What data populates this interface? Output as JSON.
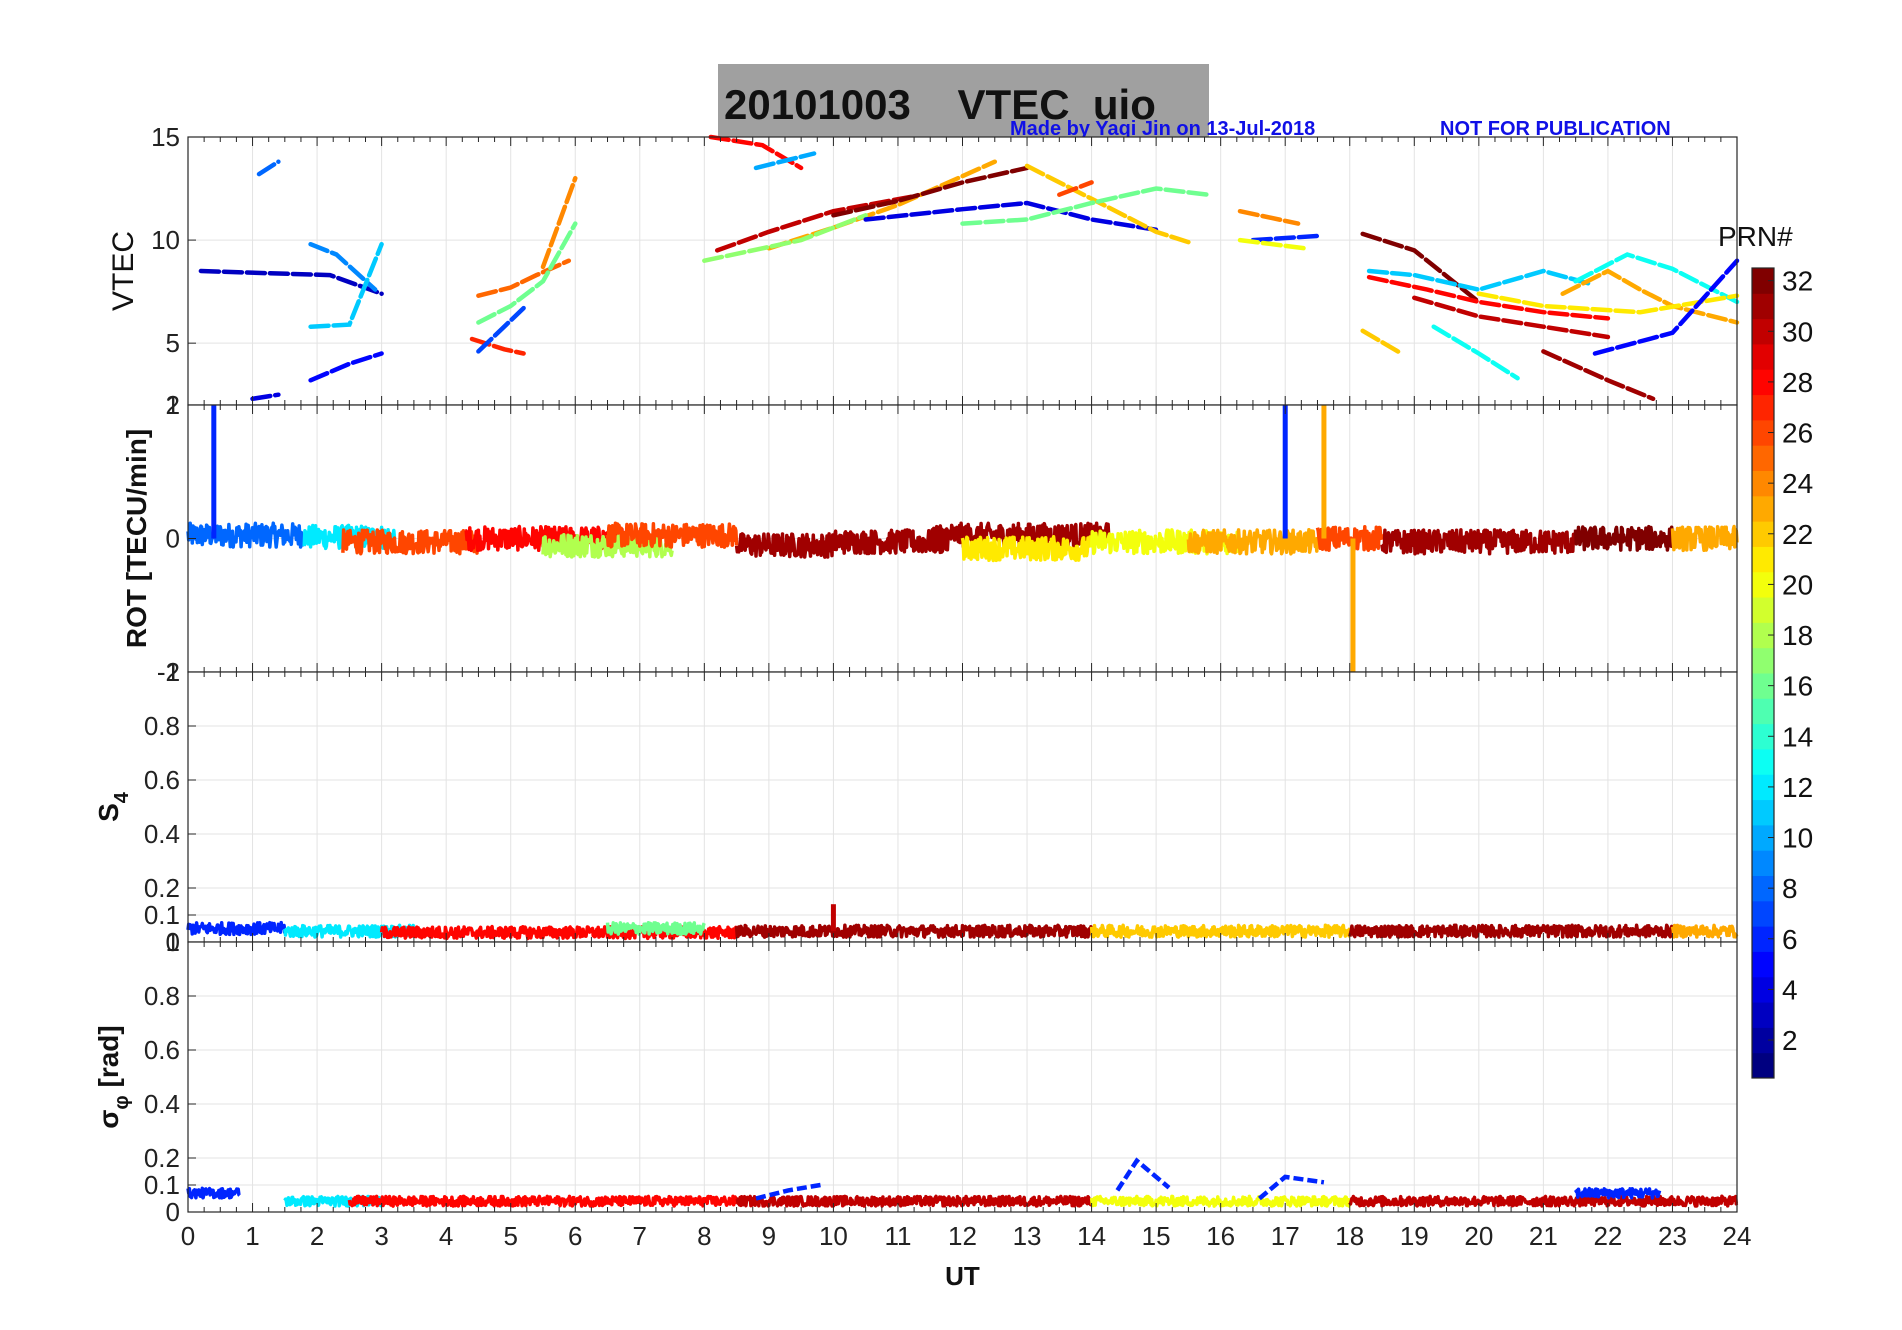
{
  "figure": {
    "title": "20101003    VTEC  uio",
    "credit": "Made by Yaqi Jin on 13-Jul-2018",
    "notice": "NOT FOR PUBLICATION",
    "title_box_color": "#a0a0a0"
  },
  "chart_data": [
    {
      "type": "line",
      "id": "vtec",
      "ylabel": "VTEC",
      "xlim": [
        0,
        24
      ],
      "ylim": [
        2,
        15
      ],
      "yticks": [
        5,
        10,
        15
      ],
      "grid": true,
      "series": [
        {
          "prn": 3,
          "x": [
            0.2,
            1.2,
            2.2,
            3.0
          ],
          "y": [
            8.5,
            8.4,
            8.3,
            7.4
          ]
        },
        {
          "prn": 4,
          "x": [
            1.0,
            1.4
          ],
          "y": [
            2.3,
            2.5
          ]
        },
        {
          "prn": 5,
          "x": [
            1.9,
            2.5,
            3.0
          ],
          "y": [
            3.2,
            4.0,
            4.5
          ]
        },
        {
          "prn": 9,
          "x": [
            1.9,
            2.3,
            2.9
          ],
          "y": [
            9.8,
            9.3,
            7.6
          ]
        },
        {
          "prn": 11,
          "x": [
            1.9,
            2.5,
            3.0
          ],
          "y": [
            5.8,
            5.9,
            9.8
          ]
        },
        {
          "prn": 8,
          "x": [
            1.1,
            1.4
          ],
          "y": [
            13.2,
            13.8
          ]
        },
        {
          "prn": 25,
          "x": [
            4.5,
            5.0,
            5.4,
            5.9
          ],
          "y": [
            7.3,
            7.7,
            8.3,
            9.0
          ]
        },
        {
          "prn": 16,
          "x": [
            4.5,
            5.0,
            5.5,
            6.0
          ],
          "y": [
            6.0,
            6.8,
            8.0,
            10.8
          ]
        },
        {
          "prn": 27,
          "x": [
            4.4,
            4.9,
            5.2
          ],
          "y": [
            5.2,
            4.7,
            4.5
          ]
        },
        {
          "prn": 7,
          "x": [
            4.5,
            5.2
          ],
          "y": [
            4.6,
            6.7
          ]
        },
        {
          "prn": 24,
          "x": [
            5.5,
            6.0
          ],
          "y": [
            8.7,
            13.0
          ]
        },
        {
          "prn": 28,
          "x": [
            8.1,
            8.9,
            9.5
          ],
          "y": [
            15.0,
            14.6,
            13.5
          ]
        },
        {
          "prn": 10,
          "x": [
            8.8,
            9.7
          ],
          "y": [
            13.5,
            14.2
          ]
        },
        {
          "prn": 30,
          "x": [
            8.2,
            9.0,
            10.0,
            11.2
          ],
          "y": [
            9.5,
            10.4,
            11.4,
            12.1
          ]
        },
        {
          "prn": 23,
          "x": [
            9.0,
            10.0,
            11.0,
            12.5
          ],
          "y": [
            9.6,
            10.6,
            11.7,
            13.8
          ]
        },
        {
          "prn": 17,
          "x": [
            8.0,
            9.5,
            10.5
          ],
          "y": [
            9.0,
            10.0,
            11.2
          ]
        },
        {
          "prn": 32,
          "x": [
            10.0,
            11.0,
            12.0,
            13.0
          ],
          "y": [
            11.2,
            11.9,
            12.8,
            13.5
          ]
        },
        {
          "prn": 4,
          "x": [
            10.5,
            12.0,
            13.0,
            14.0,
            15.0
          ],
          "y": [
            11.0,
            11.5,
            11.8,
            11.0,
            10.5
          ]
        },
        {
          "prn": 22,
          "x": [
            13.0,
            14.0,
            15.0,
            15.5
          ],
          "y": [
            13.6,
            12.0,
            10.4,
            9.9
          ]
        },
        {
          "prn": 16,
          "x": [
            12.0,
            13.0,
            14.0,
            15.0,
            15.8
          ],
          "y": [
            10.8,
            11.0,
            11.8,
            12.5,
            12.2
          ]
        },
        {
          "prn": 26,
          "x": [
            13.5,
            14.0
          ],
          "y": [
            12.2,
            12.8
          ]
        },
        {
          "prn": 24,
          "x": [
            16.3,
            17.2
          ],
          "y": [
            11.4,
            10.8
          ]
        },
        {
          "prn": 6,
          "x": [
            16.5,
            17.5
          ],
          "y": [
            10.0,
            10.2
          ]
        },
        {
          "prn": 20,
          "x": [
            16.3,
            17.3
          ],
          "y": [
            10.0,
            9.6
          ]
        },
        {
          "prn": 32,
          "x": [
            18.2,
            19.0,
            20.0
          ],
          "y": [
            10.3,
            9.5,
            7.0
          ]
        },
        {
          "prn": 28,
          "x": [
            18.3,
            19.2,
            20.0,
            21.0,
            22.0
          ],
          "y": [
            8.2,
            7.6,
            7.0,
            6.5,
            6.2
          ]
        },
        {
          "prn": 30,
          "x": [
            19.0,
            20.0,
            21.0,
            22.0
          ],
          "y": [
            7.2,
            6.3,
            5.8,
            5.3
          ]
        },
        {
          "prn": 11,
          "x": [
            18.3,
            19.0,
            20.0,
            21.0,
            21.7
          ],
          "y": [
            8.5,
            8.3,
            7.6,
            8.5,
            7.9
          ]
        },
        {
          "prn": 13,
          "x": [
            21.5,
            22.3,
            23.0,
            24.0
          ],
          "y": [
            8.0,
            9.3,
            8.6,
            7.0
          ]
        },
        {
          "prn": 23,
          "x": [
            21.3,
            22.0,
            22.5,
            23.0,
            24.0
          ],
          "y": [
            7.4,
            8.5,
            7.6,
            6.8,
            6.0
          ]
        },
        {
          "prn": 21,
          "x": [
            20.0,
            21.0,
            22.5,
            24.0
          ],
          "y": [
            7.4,
            6.8,
            6.5,
            7.3
          ]
        },
        {
          "prn": 31,
          "x": [
            21.0,
            22.0,
            22.7
          ],
          "y": [
            4.6,
            3.2,
            2.3
          ]
        },
        {
          "prn": 5,
          "x": [
            21.8,
            23.0,
            24.0
          ],
          "y": [
            4.5,
            5.5,
            9.0
          ]
        },
        {
          "prn": 13,
          "x": [
            19.3,
            20.0,
            20.6
          ],
          "y": [
            5.8,
            4.5,
            3.3
          ]
        },
        {
          "prn": 22,
          "x": [
            18.2,
            18.8
          ],
          "y": [
            5.6,
            4.5
          ]
        }
      ]
    },
    {
      "type": "line",
      "id": "rot",
      "ylabel": "ROT [TECU/min]",
      "xlim": [
        0,
        24
      ],
      "ylim": [
        -2,
        2
      ],
      "yticks": [
        -2,
        0,
        2
      ],
      "ytick_labels_overlap": [
        "-1",
        "1"
      ],
      "grid": true,
      "segments": [
        {
          "prn": 8,
          "x0": 0.0,
          "x1": 1.8,
          "y": 0.05
        },
        {
          "prn": 12,
          "x0": 1.8,
          "x1": 3.2,
          "y": 0.02
        },
        {
          "prn": 26,
          "x0": 2.4,
          "x1": 4.5,
          "y": -0.05
        },
        {
          "prn": 28,
          "x0": 4.3,
          "x1": 6.8,
          "y": 0.0
        },
        {
          "prn": 18,
          "x0": 5.5,
          "x1": 7.5,
          "y": -0.1
        },
        {
          "prn": 26,
          "x0": 6.5,
          "x1": 8.5,
          "y": 0.05
        },
        {
          "prn": 31,
          "x0": 8.5,
          "x1": 10.0,
          "y": -0.1
        },
        {
          "prn": 31,
          "x0": 10.0,
          "x1": 11.8,
          "y": -0.05
        },
        {
          "prn": 31,
          "x0": 11.5,
          "x1": 14.3,
          "y": 0.05
        },
        {
          "prn": 21,
          "x0": 12.0,
          "x1": 14.0,
          "y": -0.15
        },
        {
          "prn": 20,
          "x0": 14.0,
          "x1": 16.3,
          "y": -0.05
        },
        {
          "prn": 23,
          "x0": 15.5,
          "x1": 17.5,
          "y": -0.05
        },
        {
          "prn": 26,
          "x0": 17.5,
          "x1": 18.5,
          "y": 0.0
        },
        {
          "prn": 31,
          "x0": 18.5,
          "x1": 21.5,
          "y": -0.05
        },
        {
          "prn": 32,
          "x0": 21.5,
          "x1": 23.0,
          "y": 0.0
        },
        {
          "prn": 23,
          "x0": 23.0,
          "x1": 24.0,
          "y": 0.0
        }
      ],
      "spikes": [
        {
          "prn": 6,
          "x": 0.4,
          "y": 2.0
        },
        {
          "prn": 6,
          "x": 17.0,
          "y": 2.0
        },
        {
          "prn": 23,
          "x": 17.6,
          "y": 2.0
        },
        {
          "prn": 23,
          "x": 18.05,
          "y": -2.0
        }
      ]
    },
    {
      "type": "line",
      "id": "s4",
      "ylabel": "S",
      "ylabel_sub": "4",
      "xlim": [
        0,
        24
      ],
      "ylim": [
        0,
        1
      ],
      "yticks": [
        0,
        0.1,
        0.2,
        0.4,
        0.6,
        0.8,
        1
      ],
      "grid": true,
      "segments": [
        {
          "prn": 6,
          "x0": 0.0,
          "x1": 1.5,
          "y": 0.05
        },
        {
          "prn": 12,
          "x0": 1.5,
          "x1": 3.5,
          "y": 0.04
        },
        {
          "prn": 28,
          "x0": 3.0,
          "x1": 8.5,
          "y": 0.035
        },
        {
          "prn": 16,
          "x0": 6.5,
          "x1": 8.0,
          "y": 0.05
        },
        {
          "prn": 31,
          "x0": 8.5,
          "x1": 14.0,
          "y": 0.04
        },
        {
          "prn": 22,
          "x0": 14.0,
          "x1": 18.0,
          "y": 0.04
        },
        {
          "prn": 31,
          "x0": 18.0,
          "x1": 23.0,
          "y": 0.04
        },
        {
          "prn": 23,
          "x0": 23.0,
          "x1": 24.0,
          "y": 0.04
        }
      ],
      "spikes": [
        {
          "prn": 30,
          "x": 10.0,
          "y": 0.14
        }
      ]
    },
    {
      "type": "line",
      "id": "sigma",
      "ylabel": "σ",
      "ylabel_sub": "φ",
      "ylabel_unit": " [rad]",
      "xlim": [
        0,
        24
      ],
      "ylim": [
        0,
        1
      ],
      "yticks": [
        0,
        0.1,
        0.2,
        0.4,
        0.6,
        0.8,
        1
      ],
      "xticks": [
        0,
        1,
        2,
        3,
        4,
        5,
        6,
        7,
        8,
        9,
        10,
        11,
        12,
        13,
        14,
        15,
        16,
        17,
        18,
        19,
        20,
        21,
        22,
        23,
        24
      ],
      "xlabel": "UT",
      "grid": true,
      "segments": [
        {
          "prn": 6,
          "x0": 0.0,
          "x1": 0.8,
          "y": 0.07
        },
        {
          "prn": 12,
          "x0": 1.5,
          "x1": 3.0,
          "y": 0.04
        },
        {
          "prn": 28,
          "x0": 2.5,
          "x1": 8.5,
          "y": 0.04
        },
        {
          "prn": 30,
          "x0": 8.5,
          "x1": 14.0,
          "y": 0.04
        },
        {
          "prn": 20,
          "x0": 14.0,
          "x1": 18.0,
          "y": 0.04
        },
        {
          "prn": 30,
          "x0": 18.0,
          "x1": 24.0,
          "y": 0.04
        },
        {
          "prn": 6,
          "x0": 21.5,
          "x1": 22.8,
          "y": 0.07
        }
      ],
      "bumps": [
        {
          "prn": 6,
          "x": [
            8.8,
            9.3,
            9.8
          ],
          "y": [
            0.05,
            0.08,
            0.1
          ]
        },
        {
          "prn": 6,
          "x": [
            14.4,
            14.7,
            15.2
          ],
          "y": [
            0.08,
            0.19,
            0.09
          ]
        },
        {
          "prn": 6,
          "x": [
            16.6,
            17.0,
            17.6
          ],
          "y": [
            0.05,
            0.13,
            0.11
          ]
        }
      ]
    }
  ],
  "colorbar": {
    "title": "PRN#",
    "min": 1,
    "max": 32,
    "ticks": [
      2,
      4,
      6,
      8,
      10,
      12,
      14,
      16,
      18,
      20,
      22,
      24,
      26,
      28,
      30,
      32
    ]
  }
}
